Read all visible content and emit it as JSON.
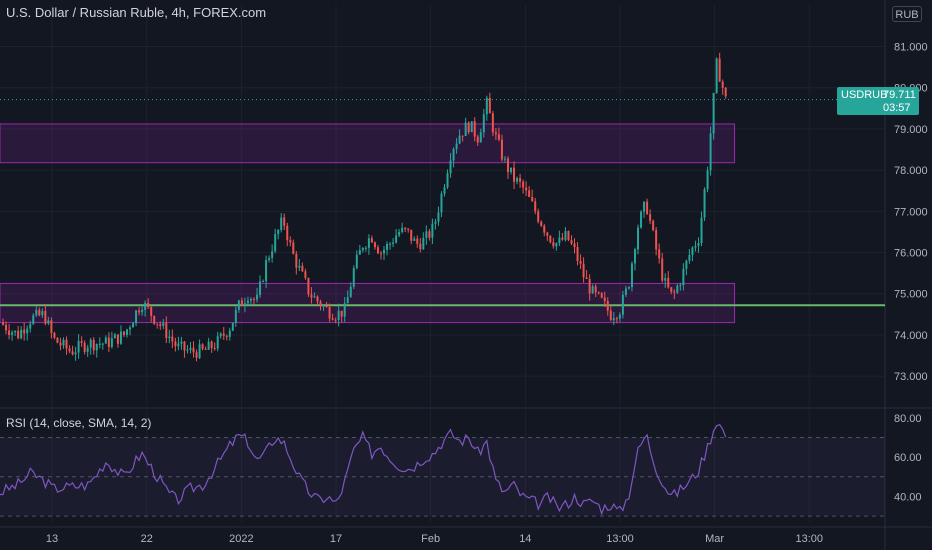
{
  "header": {
    "title": "U.S. Dollar / Russian Ruble, 4h, FOREX.com",
    "currency": "RUB"
  },
  "price_tag": {
    "symbol": "USDRUB",
    "value": "79.711",
    "countdown": "03:57"
  },
  "rsi_panel": {
    "title": "RSI (14, close, SMA, 14, 2)"
  },
  "colors": {
    "background": "#131722",
    "up": "#26a69a",
    "down": "#ef5350",
    "zone": "#9c27b0",
    "support_line": "#66bb6a",
    "rsi": "#7e57c2"
  },
  "chart_data": [
    {
      "type": "candlestick",
      "title": "U.S. Dollar / Russian Ruble, 4h, FOREX.com",
      "y_unit": "RUB",
      "ylim": [
        72.3,
        81.4
      ],
      "yticks": [
        73.0,
        74.0,
        75.0,
        76.0,
        77.0,
        78.0,
        79.0,
        80.0,
        81.0
      ],
      "ytick_labels": [
        "73.000",
        "74.000",
        "75.000",
        "76.000",
        "77.000",
        "78.000",
        "79.000",
        "80.000",
        "81.000"
      ],
      "x_tick_labels": [
        "13",
        "22",
        "2022",
        "17",
        "Feb",
        "14",
        "13:00",
        "Mar",
        "13:00"
      ],
      "last_price": 79.711,
      "zones": [
        {
          "low": 78.18,
          "high": 79.12
        },
        {
          "low": 74.3,
          "high": 75.25
        }
      ],
      "support_line": 74.72,
      "price_path": [
        [
          0,
          74.3
        ],
        [
          0.02,
          74.0
        ],
        [
          0.035,
          74.4
        ],
        [
          0.05,
          74.5
        ],
        [
          0.06,
          73.9
        ],
        [
          0.08,
          73.6
        ],
        [
          0.1,
          73.8
        ],
        [
          0.12,
          73.8
        ],
        [
          0.14,
          74.0
        ],
        [
          0.16,
          74.8
        ],
        [
          0.175,
          74.4
        ],
        [
          0.19,
          74.0
        ],
        [
          0.2,
          73.7
        ],
        [
          0.215,
          73.6
        ],
        [
          0.23,
          73.6
        ],
        [
          0.245,
          73.8
        ],
        [
          0.26,
          74.2
        ],
        [
          0.27,
          74.7
        ],
        [
          0.28,
          75.0
        ],
        [
          0.29,
          74.8
        ],
        [
          0.3,
          75.7
        ],
        [
          0.31,
          76.3
        ],
        [
          0.32,
          76.8
        ],
        [
          0.33,
          76.0
        ],
        [
          0.34,
          75.5
        ],
        [
          0.35,
          75.0
        ],
        [
          0.36,
          74.8
        ],
        [
          0.37,
          74.6
        ],
        [
          0.38,
          74.5
        ],
        [
          0.39,
          74.6
        ],
        [
          0.4,
          75.6
        ],
        [
          0.41,
          76.2
        ],
        [
          0.42,
          76.4
        ],
        [
          0.43,
          76.0
        ],
        [
          0.44,
          76.2
        ],
        [
          0.45,
          76.5
        ],
        [
          0.46,
          76.5
        ],
        [
          0.47,
          76.2
        ],
        [
          0.48,
          76.3
        ],
        [
          0.49,
          76.6
        ],
        [
          0.5,
          77.5
        ],
        [
          0.51,
          78.5
        ],
        [
          0.52,
          78.9
        ],
        [
          0.53,
          79.1
        ],
        [
          0.54,
          78.8
        ],
        [
          0.55,
          79.6
        ],
        [
          0.56,
          78.8
        ],
        [
          0.57,
          78.2
        ],
        [
          0.58,
          77.8
        ],
        [
          0.59,
          77.6
        ],
        [
          0.6,
          77.2
        ],
        [
          0.61,
          76.8
        ],
        [
          0.62,
          76.4
        ],
        [
          0.63,
          76.2
        ],
        [
          0.64,
          76.4
        ],
        [
          0.65,
          76.0
        ],
        [
          0.66,
          75.4
        ],
        [
          0.67,
          75.0
        ],
        [
          0.68,
          74.8
        ],
        [
          0.69,
          74.5
        ],
        [
          0.7,
          74.6
        ],
        [
          0.71,
          75.2
        ],
        [
          0.72,
          76.6
        ],
        [
          0.73,
          77.2
        ],
        [
          0.74,
          76.2
        ],
        [
          0.75,
          75.3
        ],
        [
          0.76,
          74.9
        ],
        [
          0.77,
          75.4
        ],
        [
          0.78,
          76.0
        ],
        [
          0.79,
          76.4
        ],
        [
          0.8,
          78.2
        ],
        [
          0.81,
          80.6
        ],
        [
          0.82,
          79.7
        ]
      ]
    },
    {
      "type": "line",
      "title": "RSI (14, close, SMA, 14, 2)",
      "ylim": [
        27,
        84
      ],
      "yticks": [
        40,
        60,
        80
      ],
      "ytick_labels": [
        "40.00",
        "60.00",
        "80.00"
      ],
      "bands": [
        30,
        50,
        70
      ],
      "rsi_path": [
        [
          0,
          42
        ],
        [
          0.02,
          46
        ],
        [
          0.035,
          52
        ],
        [
          0.05,
          48
        ],
        [
          0.06,
          44
        ],
        [
          0.08,
          45
        ],
        [
          0.1,
          46
        ],
        [
          0.12,
          58
        ],
        [
          0.14,
          50
        ],
        [
          0.16,
          62
        ],
        [
          0.175,
          52
        ],
        [
          0.19,
          42
        ],
        [
          0.2,
          38
        ],
        [
          0.215,
          44
        ],
        [
          0.23,
          46
        ],
        [
          0.245,
          56
        ],
        [
          0.26,
          66
        ],
        [
          0.27,
          71
        ],
        [
          0.28,
          68
        ],
        [
          0.29,
          58
        ],
        [
          0.3,
          62
        ],
        [
          0.31,
          70
        ],
        [
          0.32,
          68
        ],
        [
          0.33,
          58
        ],
        [
          0.34,
          48
        ],
        [
          0.35,
          42
        ],
        [
          0.36,
          38
        ],
        [
          0.37,
          40
        ],
        [
          0.38,
          36
        ],
        [
          0.39,
          48
        ],
        [
          0.4,
          64
        ],
        [
          0.41,
          70
        ],
        [
          0.42,
          62
        ],
        [
          0.43,
          66
        ],
        [
          0.44,
          60
        ],
        [
          0.45,
          56
        ],
        [
          0.46,
          54
        ],
        [
          0.47,
          56
        ],
        [
          0.48,
          60
        ],
        [
          0.49,
          62
        ],
        [
          0.5,
          68
        ],
        [
          0.51,
          72
        ],
        [
          0.52,
          68
        ],
        [
          0.53,
          70
        ],
        [
          0.54,
          62
        ],
        [
          0.55,
          68
        ],
        [
          0.56,
          48
        ],
        [
          0.57,
          42
        ],
        [
          0.58,
          46
        ],
        [
          0.59,
          40
        ],
        [
          0.6,
          38
        ],
        [
          0.61,
          36
        ],
        [
          0.62,
          40
        ],
        [
          0.63,
          34
        ],
        [
          0.64,
          36
        ],
        [
          0.65,
          40
        ],
        [
          0.66,
          36
        ],
        [
          0.67,
          38
        ],
        [
          0.68,
          34
        ],
        [
          0.69,
          36
        ],
        [
          0.7,
          32
        ],
        [
          0.71,
          40
        ],
        [
          0.72,
          62
        ],
        [
          0.73,
          72
        ],
        [
          0.74,
          56
        ],
        [
          0.75,
          46
        ],
        [
          0.76,
          40
        ],
        [
          0.77,
          44
        ],
        [
          0.78,
          48
        ],
        [
          0.79,
          54
        ],
        [
          0.8,
          66
        ],
        [
          0.81,
          79
        ],
        [
          0.82,
          71
        ]
      ]
    }
  ]
}
